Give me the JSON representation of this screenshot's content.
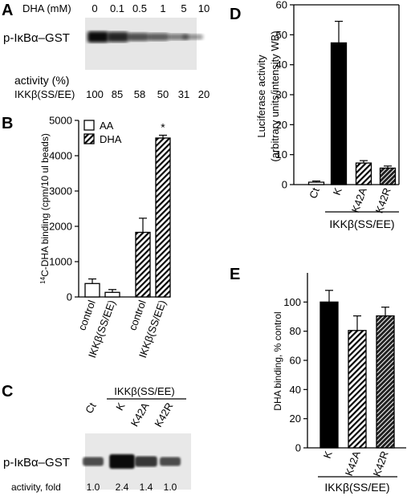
{
  "panel_a": {
    "letter": "A",
    "dha_label": "DHA (mM)",
    "concentrations": [
      "0",
      "0.1",
      "0.5",
      "1",
      "5",
      "10"
    ],
    "band_label": "p-IκBα–GST",
    "activity_label": "activity (%)",
    "kinase_label": "IKKβ(SS/EE)",
    "activity_values": [
      "100",
      "85",
      "58",
      "50",
      "31",
      "20"
    ],
    "band_intensity": [
      1.0,
      0.85,
      0.58,
      0.5,
      0.31,
      0.2
    ]
  },
  "panel_c": {
    "letter": "C",
    "kinase_label": "IKKβ(SS/EE)",
    "lanes": [
      "Ct",
      "K",
      "K42A",
      "K42R"
    ],
    "band_label": "p-IκBα–GST",
    "activity_label": "activity, fold",
    "activity_values": [
      "1.0",
      "2.4",
      "1.4",
      "1.0"
    ],
    "band_intensity": [
      1.0,
      2.4,
      1.4,
      1.0
    ]
  },
  "chart_data": [
    {
      "panel": "B",
      "type": "bar",
      "ylabel": "14C-DHA binding (cpm/10 ul beads)",
      "ylabel_sup": "14",
      "ylabel_rest": "C-DHA binding (cpm/10 ul beads)",
      "ylim": [
        0,
        5000
      ],
      "yticks": [
        "0",
        "1000",
        "2000",
        "3000",
        "4000",
        "5000"
      ],
      "categories": [
        "control",
        "IKKβ(SS/EE)",
        "control",
        "IKKβ(SS/EE)"
      ],
      "legend": [
        "AA",
        "DHA"
      ],
      "series": [
        {
          "name": "AA",
          "values": [
            380,
            130,
            null,
            null
          ],
          "errors": [
            130,
            80,
            null,
            null
          ],
          "pattern": "white"
        },
        {
          "name": "DHA",
          "values": [
            null,
            null,
            1830,
            4500
          ],
          "errors": [
            null,
            null,
            400,
            80
          ],
          "pattern": "hatch"
        }
      ],
      "annotation": "*"
    },
    {
      "panel": "D",
      "type": "bar",
      "ylabel_line1": "Luciferase activity",
      "ylabel_line2": "(arbitrary units/intensity WB)",
      "ylim": [
        0,
        60
      ],
      "yticks": [
        "0",
        "10",
        "20",
        "30",
        "40",
        "50",
        "60"
      ],
      "categories": [
        "Ct",
        "K",
        "K42A",
        "K42R"
      ],
      "values": [
        0.8,
        47.3,
        7.2,
        5.5
      ],
      "errors": [
        0.4,
        7.2,
        0.8,
        0.7
      ],
      "patterns": [
        "white",
        "black",
        "hatch",
        "crosshatch"
      ],
      "xgroup_label": "IKKβ(SS/EE)"
    },
    {
      "panel": "E",
      "type": "bar",
      "ylabel": "DHA binding, % control",
      "ylim": [
        0,
        120
      ],
      "yticks": [
        "0",
        "20",
        "40",
        "60",
        "80",
        "100"
      ],
      "categories": [
        "K",
        "K42A",
        "K42R"
      ],
      "values": [
        100,
        80.5,
        90.5
      ],
      "errors": [
        8,
        10,
        6
      ],
      "patterns": [
        "black",
        "hatch",
        "crosshatch"
      ],
      "xgroup_label": "IKKβ(SS/EE)"
    }
  ],
  "letters": {
    "b": "B",
    "d": "D",
    "e": "E"
  }
}
